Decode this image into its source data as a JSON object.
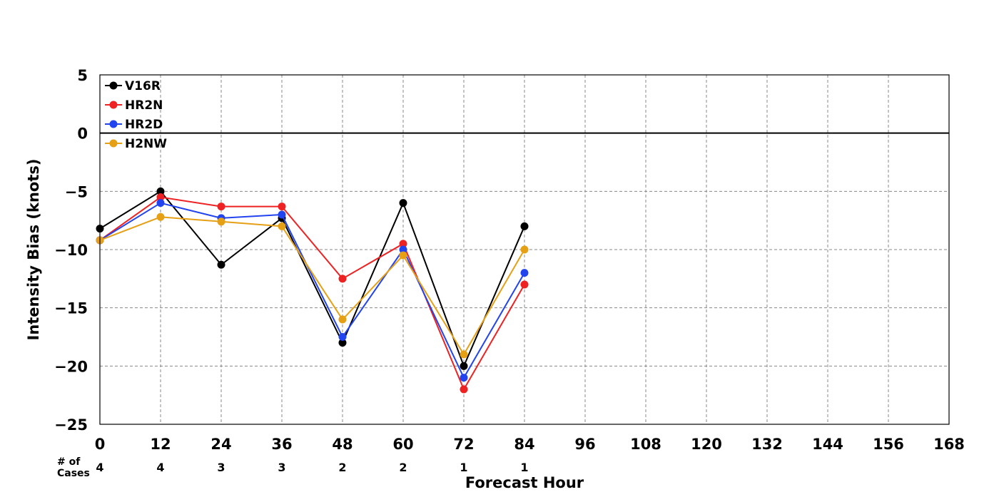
{
  "chart_data": {
    "type": "line",
    "xlabel": "Forecast Hour",
    "ylabel": "Intensity Bias (knots)",
    "xlim": [
      0,
      168
    ],
    "ylim": [
      -25,
      5
    ],
    "x_ticks": [
      0,
      12,
      24,
      36,
      48,
      60,
      72,
      84,
      96,
      108,
      120,
      132,
      144,
      156,
      168
    ],
    "y_ticks": [
      5,
      0,
      -5,
      -10,
      -15,
      -20,
      -25
    ],
    "y_tick_labels": [
      "5",
      "0",
      "−5",
      "−10",
      "−15",
      "−20",
      "−25"
    ],
    "grid": true,
    "zero_line": true,
    "legend_position": "top-left",
    "x": [
      0,
      12,
      24,
      36,
      48,
      60,
      72,
      84
    ],
    "series": [
      {
        "name": "V16R",
        "color": "#000000",
        "values": [
          -8.2,
          -5.0,
          -11.3,
          -7.3,
          -18.0,
          -6.0,
          -20.0,
          -8.0
        ]
      },
      {
        "name": "HR2N",
        "color": "#ee2222",
        "values": [
          -9.2,
          -5.5,
          -6.3,
          -6.3,
          -12.5,
          -9.5,
          -22.0,
          -13.0
        ]
      },
      {
        "name": "HR2D",
        "color": "#2244ee",
        "values": [
          -9.2,
          -6.0,
          -7.3,
          -7.0,
          -17.5,
          -10.0,
          -21.0,
          -12.0
        ]
      },
      {
        "name": "H2NW",
        "color": "#e6a015",
        "values": [
          -9.2,
          -7.2,
          -7.6,
          -8.0,
          -16.0,
          -10.5,
          -19.0,
          -10.0
        ]
      }
    ],
    "cases": {
      "label_line1": "# of",
      "label_line2": "Cases",
      "values": [
        "4",
        "4",
        "3",
        "3",
        "2",
        "2",
        "1",
        "1"
      ]
    }
  }
}
